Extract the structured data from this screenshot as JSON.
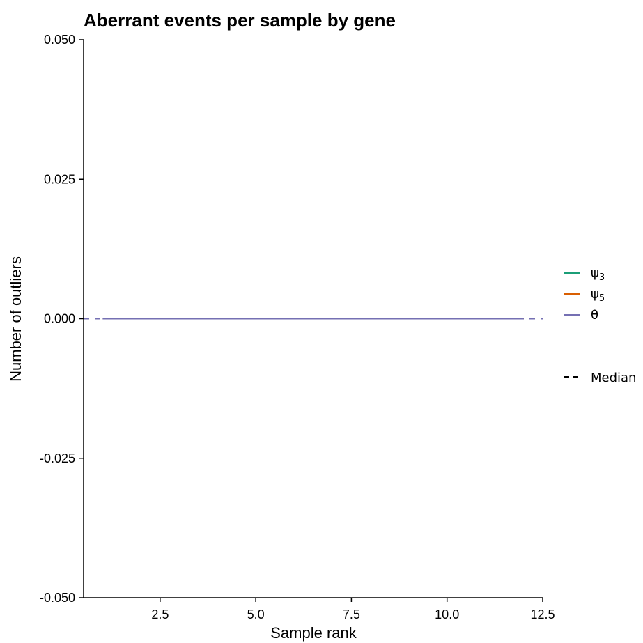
{
  "chart_data": {
    "type": "line",
    "title": "Aberrant events per sample by gene",
    "xlabel": "Sample rank",
    "ylabel": "Number of outliers",
    "xlim": [
      0.5,
      12.5
    ],
    "ylim": [
      -0.05,
      0.05
    ],
    "x_ticks": [
      2.5,
      5.0,
      7.5,
      10.0,
      12.5
    ],
    "x_tick_labels": [
      "2.5",
      "5.0",
      "7.5",
      "10.0",
      "12.5"
    ],
    "y_ticks": [
      -0.05,
      -0.025,
      0.0,
      0.025,
      0.05
    ],
    "y_tick_labels": [
      "-0.050",
      "-0.025",
      "0.000",
      "0.025",
      "0.050"
    ],
    "grid": false,
    "legend_position": "right",
    "series": [
      {
        "name": "ψ3",
        "color": "#1b9e77",
        "x": [
          1,
          2,
          3,
          4,
          5,
          6,
          7,
          8,
          9,
          10,
          11,
          12
        ],
        "values": [
          0,
          0,
          0,
          0,
          0,
          0,
          0,
          0,
          0,
          0,
          0,
          0
        ]
      },
      {
        "name": "ψ5",
        "color": "#d95f02",
        "x": [
          1,
          2,
          3,
          4,
          5,
          6,
          7,
          8,
          9,
          10,
          11,
          12
        ],
        "values": [
          0,
          0,
          0,
          0,
          0,
          0,
          0,
          0,
          0,
          0,
          0,
          0
        ]
      },
      {
        "name": "θ",
        "color": "#7570b3",
        "x": [
          1,
          2,
          3,
          4,
          5,
          6,
          7,
          8,
          9,
          10,
          11,
          12
        ],
        "values": [
          0,
          0,
          0,
          0,
          0,
          0,
          0,
          0,
          0,
          0,
          0,
          0
        ]
      }
    ],
    "median_lines": [
      {
        "series": "ψ3",
        "value": 0
      },
      {
        "series": "ψ5",
        "value": 0
      },
      {
        "series": "θ",
        "value": 0
      }
    ],
    "legend": {
      "series_entries": [
        {
          "label_main": "ψ",
          "label_sub": "3",
          "color": "#1b9e77"
        },
        {
          "label_main": "ψ",
          "label_sub": "5",
          "color": "#d95f02"
        },
        {
          "label_main": "θ",
          "label_sub": "",
          "color": "#7570b3"
        }
      ],
      "linetype_entry": {
        "label": "Median",
        "color": "#000000"
      }
    }
  }
}
